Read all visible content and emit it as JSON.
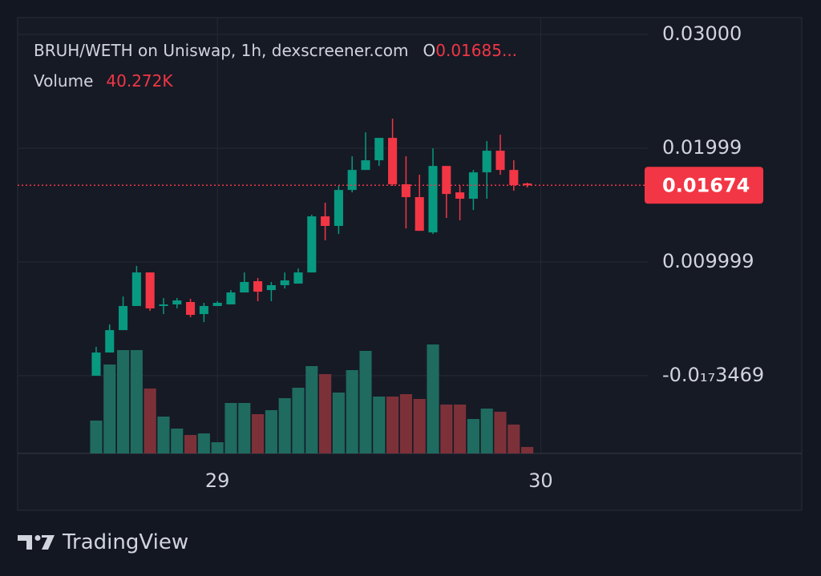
{
  "chart_data": {
    "type": "candlestick",
    "title": "BRUH/WETH on Uniswap, 1h, dexscreener.com",
    "ohlc_label": "O",
    "ohlc_value": "0.01685...",
    "volume_label": "Volume",
    "volume_value": "40.272K",
    "x": [
      0,
      1,
      2,
      3,
      4,
      5,
      6,
      7,
      8,
      9,
      10,
      11,
      12,
      13,
      14,
      15,
      16,
      17,
      18,
      19,
      20,
      21,
      22,
      23,
      24,
      25,
      26,
      27,
      28,
      29,
      30,
      31,
      32
    ],
    "open": [
      0.0,
      0.00204,
      0.00401,
      0.00613,
      0.00908,
      0.00613,
      0.00627,
      0.00648,
      0.00542,
      0.00613,
      0.00627,
      0.00732,
      0.00831,
      0.00753,
      0.00796,
      0.0081,
      0.00908,
      0.01401,
      0.01317,
      0.01633,
      0.01809,
      0.01894,
      0.02091,
      0.01683,
      0.0157,
      0.0126,
      0.01844,
      0.01612,
      0.01556,
      0.01788,
      0.01978,
      0.01809,
      0.0169
    ],
    "high": [
      0.00254,
      0.00451,
      0.00697,
      0.00965,
      0.00908,
      0.00683,
      0.00683,
      0.00676,
      0.00641,
      0.00655,
      0.00753,
      0.00908,
      0.00859,
      0.00824,
      0.00908,
      0.00943,
      0.01415,
      0.01521,
      0.01669,
      0.01929,
      0.0214,
      0.02091,
      0.0226,
      0.01929,
      0.01767,
      0.01999,
      0.01844,
      0.01669,
      0.01809,
      0.02063,
      0.02119,
      0.01894,
      0.01697
    ],
    "low": [
      0.0,
      0.00204,
      0.00401,
      0.00613,
      0.0057,
      0.00542,
      0.00592,
      0.00514,
      0.00472,
      0.00613,
      0.00627,
      0.00732,
      0.00655,
      0.00655,
      0.00767,
      0.0081,
      0.00908,
      0.0119,
      0.01246,
      0.01612,
      0.01809,
      0.01844,
      0.01669,
      0.01295,
      0.01274,
      0.01246,
      0.01387,
      0.01366,
      0.01457,
      0.01556,
      0.01767,
      0.01626,
      0.01655
    ],
    "close": [
      0.00204,
      0.00401,
      0.00613,
      0.00908,
      0.00592,
      0.00627,
      0.00662,
      0.00535,
      0.00613,
      0.00641,
      0.00732,
      0.00824,
      0.00739,
      0.00796,
      0.00838,
      0.00908,
      0.01401,
      0.01317,
      0.01633,
      0.01809,
      0.01894,
      0.02091,
      0.01683,
      0.0157,
      0.01274,
      0.01844,
      0.01598,
      0.01556,
      0.01788,
      0.01978,
      0.01809,
      0.01676,
      0.01674
    ],
    "volume": [
      205000,
      555000,
      645000,
      645000,
      405000,
      230000,
      155000,
      115000,
      125000,
      70000,
      315000,
      315000,
      245000,
      270000,
      345000,
      410000,
      545000,
      495000,
      380000,
      520000,
      640000,
      355000,
      355000,
      370000,
      340000,
      680000,
      305000,
      305000,
      215000,
      280000,
      260000,
      180000,
      40272
    ],
    "up_color": "#089981",
    "down_color": "#f23645",
    "volume_up_color": "#1f6b60",
    "volume_down_color": "#7c3139",
    "last_price": 0.01674,
    "ylim": [
      -0.00683,
      0.03148
    ],
    "yticks": [
      {
        "value": 0.03,
        "label": "0.03000"
      },
      0.01999,
      0.009999,
      {
        "value": -3.469e-18,
        "label": "-0.0₁₇3469"
      }
    ],
    "xlim": [
      -5.83,
      40.95
    ],
    "xticks": [
      {
        "value": 9,
        "label": "29"
      },
      {
        "value": 33,
        "label": "30"
      }
    ],
    "grid": true,
    "branding": "TradingView"
  }
}
